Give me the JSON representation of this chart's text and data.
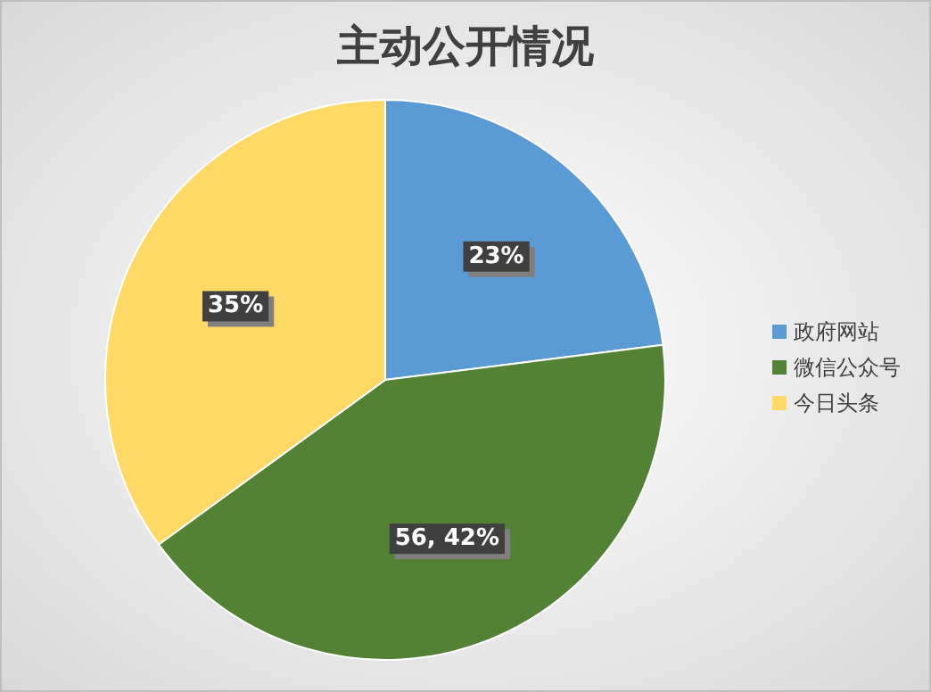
{
  "chart_data": {
    "type": "pie",
    "title": "主动公开情况",
    "categories": [
      "政府网站",
      "微信公众号",
      "今日头条"
    ],
    "values": [
      23,
      42,
      35
    ],
    "colors": [
      "#5b9bd5",
      "#548235",
      "#ffd966"
    ],
    "value_labels": [
      "23%",
      "56, 42%",
      "35%"
    ],
    "legend": "right"
  }
}
